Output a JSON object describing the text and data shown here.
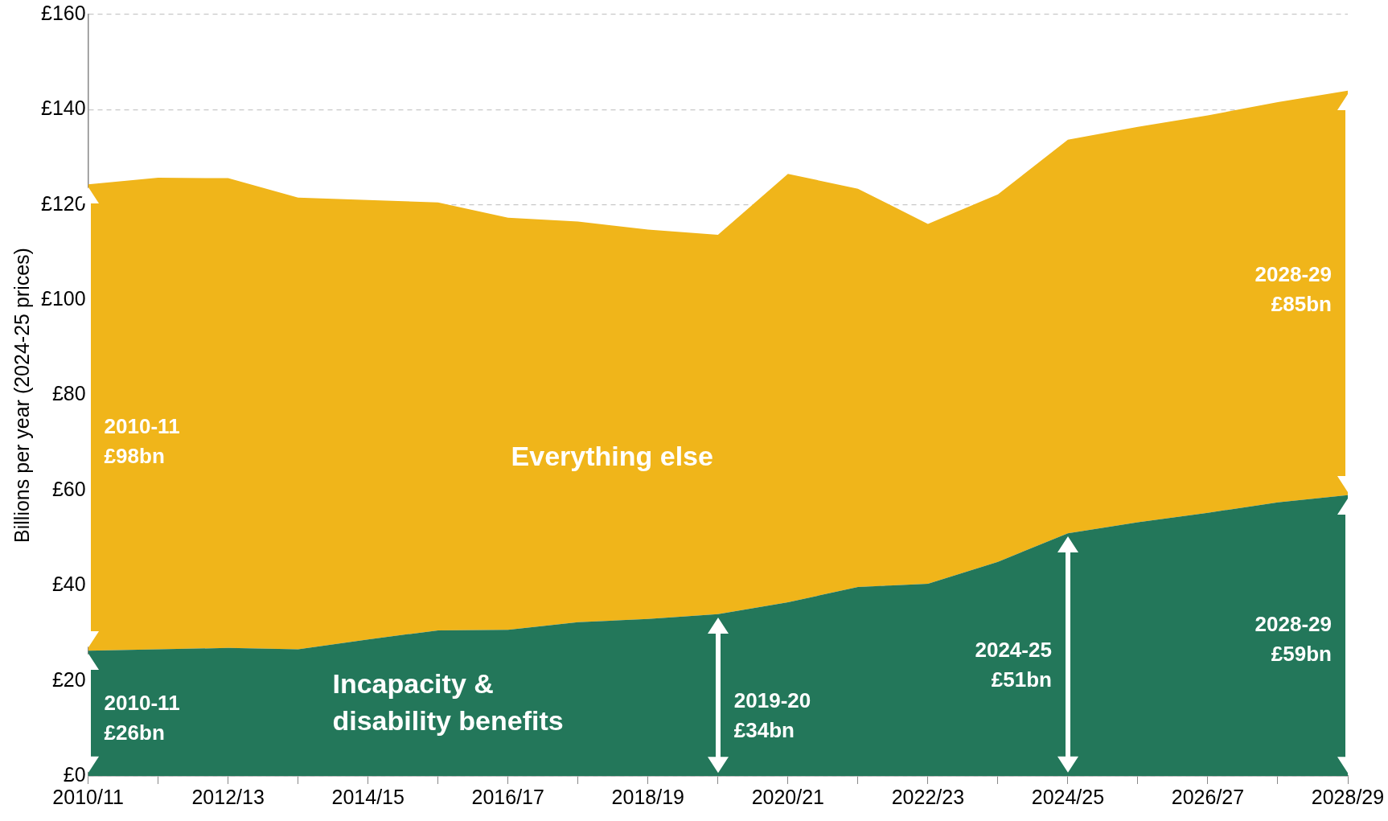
{
  "chart_data": {
    "type": "area",
    "stacked": true,
    "ylabel": "Billions per year (2024-25 prices)",
    "categories": [
      "2010/11",
      null,
      "2012/13",
      null,
      "2014/15",
      null,
      "2016/17",
      null,
      "2018/19",
      null,
      "2020/21",
      null,
      "2022/23",
      null,
      "2024/25",
      null,
      "2026/27",
      null,
      "2028/29"
    ],
    "ylim": [
      0,
      160
    ],
    "yticks": [
      {
        "value": 0,
        "label": "£0"
      },
      {
        "value": 20,
        "label": "£20"
      },
      {
        "value": 40,
        "label": "£40"
      },
      {
        "value": 60,
        "label": "£60"
      },
      {
        "value": 80,
        "label": "£80"
      },
      {
        "value": 100,
        "label": "£100"
      },
      {
        "value": 120,
        "label": "£120"
      },
      {
        "value": 140,
        "label": "£140"
      },
      {
        "value": 160,
        "label": "£160"
      }
    ],
    "grid": "y",
    "series": [
      {
        "name": "Incapacity & disability benefits",
        "color": "#23775a",
        "values": [
          26.3,
          26.6,
          26.9,
          26.6,
          28.7,
          30.6,
          30.7,
          32.3,
          33,
          34,
          36.5,
          39.7,
          40.4,
          45,
          51,
          53.3,
          55.3,
          57.5,
          59
        ]
      },
      {
        "name": "Everything else",
        "color": "#f0b51a",
        "values": [
          98,
          99.1,
          98.7,
          94.9,
          92.3,
          89.9,
          86.6,
          84.2,
          81.8,
          79.7,
          90,
          83.7,
          75.6,
          77.2,
          82.7,
          83.1,
          83.5,
          84.1,
          85
        ]
      }
    ],
    "annotations": [
      "2010-11\n£26bn",
      "2010-11\n£98bn",
      "2019-20\n£34bn",
      "2024-25\n£51bn",
      "2028-29\n£59bn",
      "2028-29\n£85bn"
    ]
  }
}
